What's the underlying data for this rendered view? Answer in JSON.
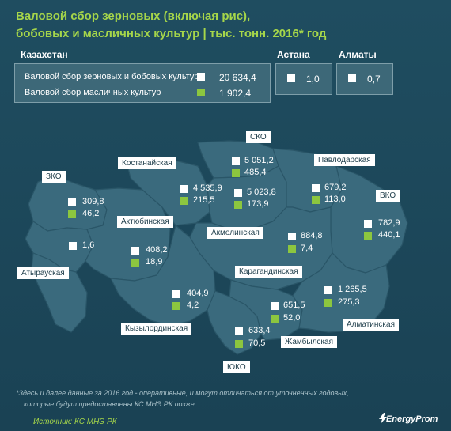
{
  "title": {
    "line1": "Валовой сбор зерновых (включая рис),",
    "line2": "бобовых и масличных культур | тыс. тонн. 2016* год"
  },
  "kazakhstan": {
    "label": "Казахстан",
    "grain_label": "Валовой сбор зерновых и бобовых культур",
    "grain_value": "20 634,4",
    "oil_label": "Валовой сбор масличных культур",
    "oil_value": "1 902,4"
  },
  "astana": {
    "label": "Астана",
    "value": "1,0"
  },
  "almaty": {
    "label": "Алматы",
    "value": "0,7"
  },
  "regions": {
    "sko": {
      "name": "СКО",
      "grain": "5 051,2",
      "oil": "485,4"
    },
    "zko": {
      "name": "ЗКО",
      "grain": "309,8",
      "oil": "46,2"
    },
    "kostanay": {
      "name": "Костанайская",
      "grain": "4 535,9",
      "oil": "215,5"
    },
    "akmola": {
      "name": "Акмолинская",
      "grain": "5 023,8",
      "oil": "173,9"
    },
    "pavlodar": {
      "name": "Павлодарская",
      "grain": "679,2",
      "oil": "113,0"
    },
    "vko": {
      "name": "ВКО",
      "grain": "782,9",
      "oil": "440,1"
    },
    "aktobe": {
      "name": "Актюбинская",
      "grain": "408,2",
      "oil": "18,9"
    },
    "karaganda": {
      "name": "Карагандинская",
      "grain": "884,8",
      "oil": "7,4"
    },
    "atyrau": {
      "name": "Атырауская",
      "grain": "1,6"
    },
    "kyzylorda": {
      "name": "Кызылординская",
      "grain": "404,9",
      "oil": "4,2"
    },
    "almatinsk": {
      "name": "Алматинская",
      "grain": "1 265,5",
      "oil": "275,3"
    },
    "zhambyl": {
      "name": "Жамбылская",
      "grain": "651,5",
      "oil": "52,0"
    },
    "uko": {
      "name": "ЮКО",
      "grain": "633,4",
      "oil": "70,5"
    }
  },
  "footnote": {
    "line1": "*Здесь и далее данные за 2016 год - оперативные, и могут отличаться от уточненных годовых,",
    "line2": "которые будут предоставлены КС МНЭ РК позже."
  },
  "source": "Источник: КС МНЭ РК",
  "logo": "EnergyProm",
  "colors": {
    "grain": "#ffffff",
    "oil": "#8cc63f",
    "accent": "#a6d64a",
    "map": "#3a6a7d"
  }
}
